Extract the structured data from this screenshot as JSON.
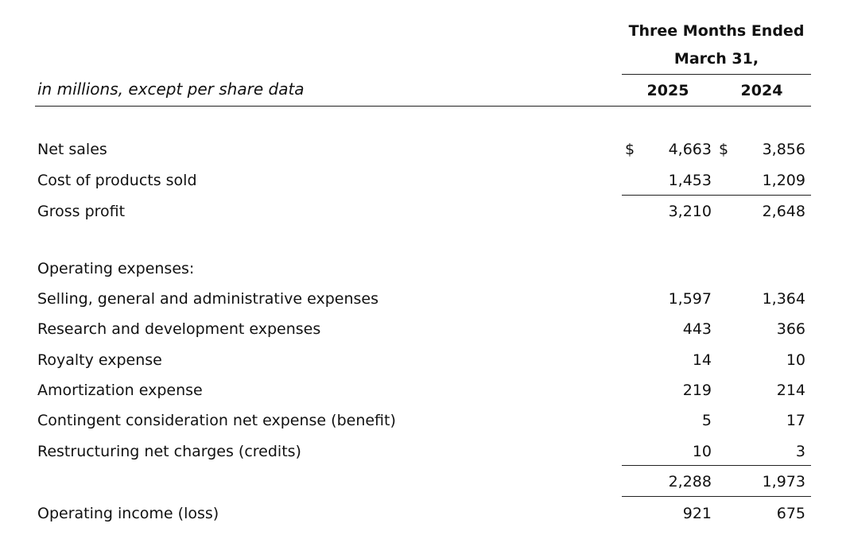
{
  "header": {
    "period_line1": "Three Months Ended",
    "period_line2": "March 31,",
    "units": "in millions, except per share data",
    "year_current": "2025",
    "year_prior": "2024"
  },
  "currency_symbol": "$",
  "rows": [
    {
      "label": "Net sales",
      "current": "4,663",
      "prior": "3,856"
    },
    {
      "label": "Cost of products sold",
      "current": "1,453",
      "prior": "1,209"
    },
    {
      "label": "Gross profit",
      "current": "3,210",
      "prior": "2,648"
    },
    {
      "label": "Operating expenses:",
      "current": "",
      "prior": ""
    },
    {
      "label": "Selling, general and administrative expenses",
      "current": "1,597",
      "prior": "1,364"
    },
    {
      "label": "Research and development expenses",
      "current": "443",
      "prior": "366"
    },
    {
      "label": "Royalty expense",
      "current": "14",
      "prior": "10"
    },
    {
      "label": "Amortization expense",
      "current": "219",
      "prior": "214"
    },
    {
      "label": "Contingent consideration net expense (benefit)",
      "current": "5",
      "prior": "17"
    },
    {
      "label": "Restructuring net charges (credits)",
      "current": "10",
      "prior": "3"
    },
    {
      "label": "",
      "current": "2,288",
      "prior": "1,973"
    },
    {
      "label": "Operating income (loss)",
      "current": "921",
      "prior": "675"
    }
  ]
}
